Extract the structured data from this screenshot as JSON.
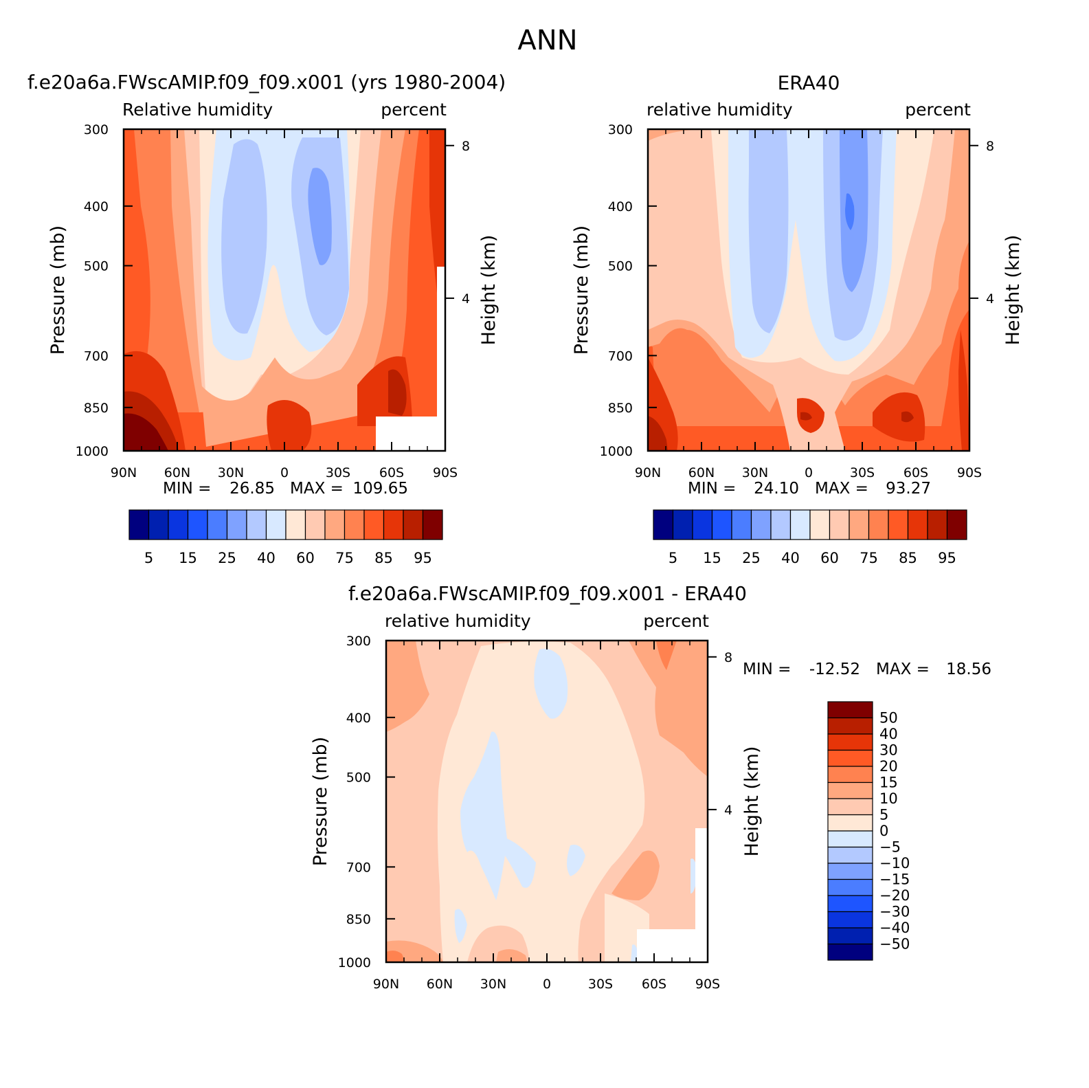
{
  "page_title": "ANN",
  "chart_data": [
    {
      "type": "heatmap",
      "title": "f.e20a6a.FWscAMIP.f09_f09.x001 (yrs 1980-2004)",
      "subtitle_left": "Relative humidity",
      "subtitle_right": "percent",
      "ylabel": "Pressure (mb)",
      "ylabel_right": "Height (km)",
      "xticks": [
        "90N",
        "60N",
        "30N",
        "0",
        "30S",
        "60S",
        "90S"
      ],
      "yticks": [
        "300",
        "400",
        "500",
        "700",
        "850",
        "1000"
      ],
      "height_ticks": [
        "8",
        "4"
      ],
      "min_label": "MIN =",
      "min_value": "26.85",
      "max_label": "MAX =",
      "max_value": "109.65",
      "colorbar_labels": [
        "5",
        "15",
        "25",
        "40",
        "60",
        "75",
        "85",
        "95"
      ]
    },
    {
      "type": "heatmap",
      "title": "ERA40",
      "subtitle_left": "relative humidity",
      "subtitle_right": "percent",
      "ylabel": "Pressure (mb)",
      "ylabel_right": "Height (km)",
      "xticks": [
        "90N",
        "60N",
        "30N",
        "0",
        "30S",
        "60S",
        "90S"
      ],
      "yticks": [
        "300",
        "400",
        "500",
        "700",
        "850",
        "1000"
      ],
      "height_ticks": [
        "8",
        "4"
      ],
      "min_label": "MIN =",
      "min_value": "24.10",
      "max_label": "MAX =",
      "max_value": "93.27",
      "colorbar_labels": [
        "5",
        "15",
        "25",
        "40",
        "60",
        "75",
        "85",
        "95"
      ]
    },
    {
      "type": "heatmap",
      "title": "f.e20a6a.FWscAMIP.f09_f09.x001 - ERA40",
      "subtitle_left": "relative humidity",
      "subtitle_right": "percent",
      "ylabel": "Pressure (mb)",
      "ylabel_right": "Height (km)",
      "xticks": [
        "90N",
        "60N",
        "30N",
        "0",
        "30S",
        "60S",
        "90S"
      ],
      "yticks": [
        "300",
        "400",
        "500",
        "700",
        "850",
        "1000"
      ],
      "height_ticks": [
        "8",
        "4"
      ],
      "min_label": "MIN =",
      "min_value": "-12.52",
      "max_label": "MAX =",
      "max_value": "18.56",
      "colorbar_labels": [
        "50",
        "40",
        "30",
        "20",
        "15",
        "10",
        "5",
        "0",
        "-5",
        "-10",
        "-15",
        "-20",
        "-30",
        "-40",
        "-50"
      ]
    }
  ],
  "colors": {
    "abs_scale": [
      "#00007f",
      "#0020b0",
      "#0a35e0",
      "#1e55ff",
      "#4b7dff",
      "#7fa2ff",
      "#b3c9ff",
      "#d8e9ff",
      "#ffe8d6",
      "#ffcab2",
      "#ffa880",
      "#ff8250",
      "#ff5a25",
      "#e63508",
      "#b81f00",
      "#7f0000"
    ],
    "diff_scale": [
      "#7f0000",
      "#b81f00",
      "#e63508",
      "#ff5a25",
      "#ff8250",
      "#ffa880",
      "#ffcab2",
      "#ffe8d6",
      "#d8e9ff",
      "#b3c9ff",
      "#7fa2ff",
      "#4b7dff",
      "#1e55ff",
      "#0a35e0",
      "#0020b0",
      "#00007f"
    ]
  }
}
